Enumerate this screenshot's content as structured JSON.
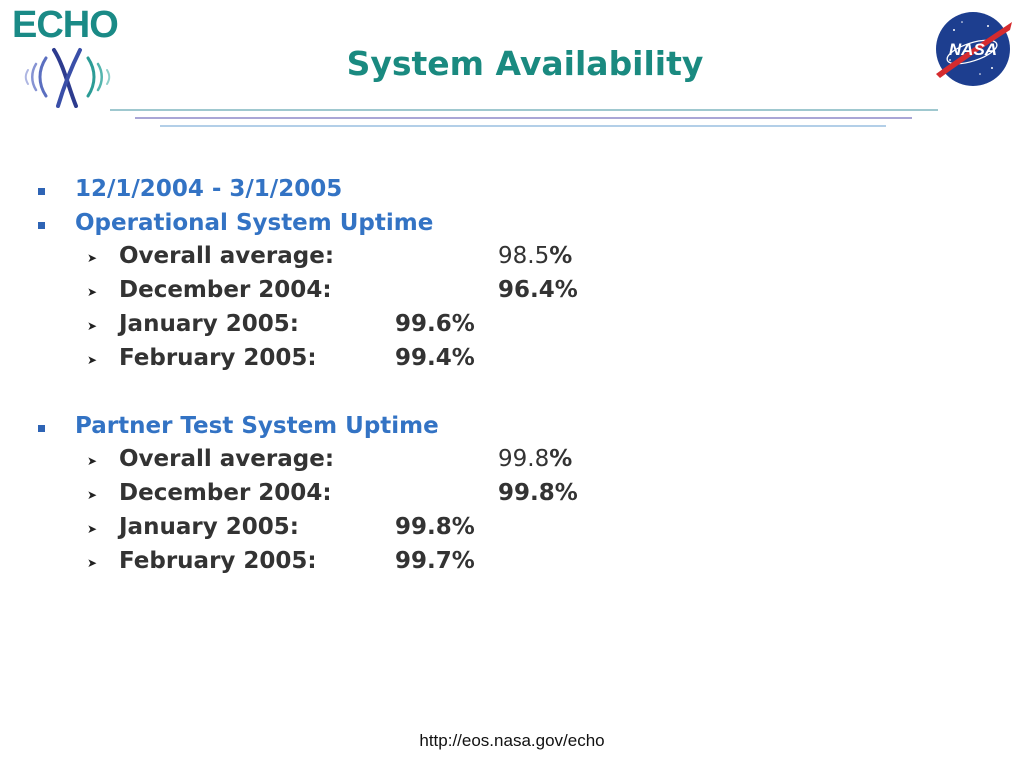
{
  "logos": {
    "echo_text": "ECHO",
    "echo_mark_icon": "echo-wave-icon",
    "nasa_text": "NASA",
    "nasa_icon": "nasa-meatball-icon"
  },
  "title": "System Availability",
  "colors": {
    "title": "#1a8a80",
    "heading_blue": "#3373c4",
    "body_text": "#333333",
    "bullet_square": "#2e64b5"
  },
  "sections": [
    {
      "date_range": "12/1/2004 - 3/1/2005"
    },
    {
      "heading": "Operational System Uptime",
      "items": [
        {
          "label": "Overall average:",
          "value_num": "98.5",
          "value_pct": "%"
        },
        {
          "label": "December 2004:",
          "value": "96.4%"
        },
        {
          "label": "January 2005:",
          "value": "99.6%"
        },
        {
          "label": "February 2005:",
          "value": "99.4%"
        }
      ]
    },
    {
      "heading": "Partner Test System Uptime",
      "items": [
        {
          "label": "Overall average:",
          "value_num": "99.8",
          "value_pct": "%"
        },
        {
          "label": "December 2004:",
          "value": "99.8%"
        },
        {
          "label": "January 2005:",
          "value": "99.8%"
        },
        {
          "label": "February 2005:",
          "value": "99.7%"
        }
      ]
    }
  ],
  "bullet_icons": {
    "level1": "square-bullet-icon",
    "level2": "arrowhead-bullet-icon"
  },
  "footer": {
    "url": "http://eos.nasa.gov/echo"
  }
}
